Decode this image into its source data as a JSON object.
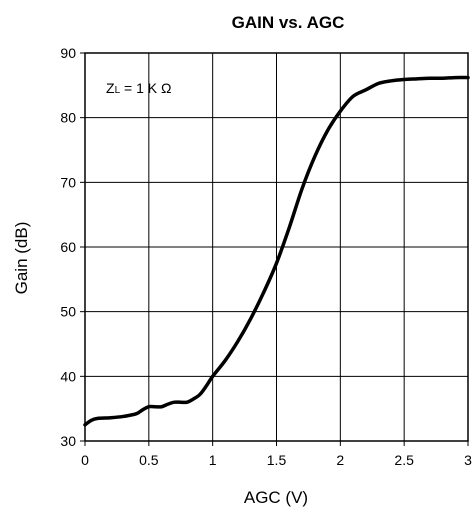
{
  "chart_data": {
    "type": "line",
    "title": "GAIN vs. AGC",
    "xlabel": "AGC (V)",
    "ylabel": "Gain (dB)",
    "xlim": [
      0,
      3
    ],
    "ylim": [
      30,
      90
    ],
    "x_ticks": [
      "0",
      "0.5",
      "1",
      "1.5",
      "2",
      "2.5",
      "3"
    ],
    "y_ticks": [
      "30",
      "40",
      "50",
      "60",
      "70",
      "80",
      "90"
    ],
    "grid": true,
    "annotation": {
      "main": "Z",
      "sub": "L",
      "rest": " = 1 K Ω"
    },
    "series": [
      {
        "x": [
          0,
          0.05,
          0.1,
          0.2,
          0.3,
          0.4,
          0.45,
          0.5,
          0.55,
          0.6,
          0.65,
          0.7,
          0.75,
          0.8,
          0.85,
          0.9,
          0.95,
          1.0,
          1.1,
          1.2,
          1.3,
          1.4,
          1.5,
          1.6,
          1.7,
          1.8,
          1.9,
          2.0,
          2.1,
          2.2,
          2.3,
          2.4,
          2.5,
          2.6,
          2.7,
          2.8,
          2.9,
          3.0
        ],
        "values": [
          32.5,
          33.2,
          33.5,
          33.6,
          33.8,
          34.2,
          34.8,
          35.3,
          35.3,
          35.3,
          35.7,
          36.0,
          36.0,
          36.0,
          36.5,
          37.2,
          38.5,
          40.0,
          42.5,
          45.5,
          49.0,
          53.0,
          57.5,
          63.0,
          69.0,
          74.0,
          78.0,
          81.0,
          83.3,
          84.3,
          85.3,
          85.7,
          85.9,
          86.0,
          86.1,
          86.1,
          86.2,
          86.2
        ]
      }
    ]
  }
}
